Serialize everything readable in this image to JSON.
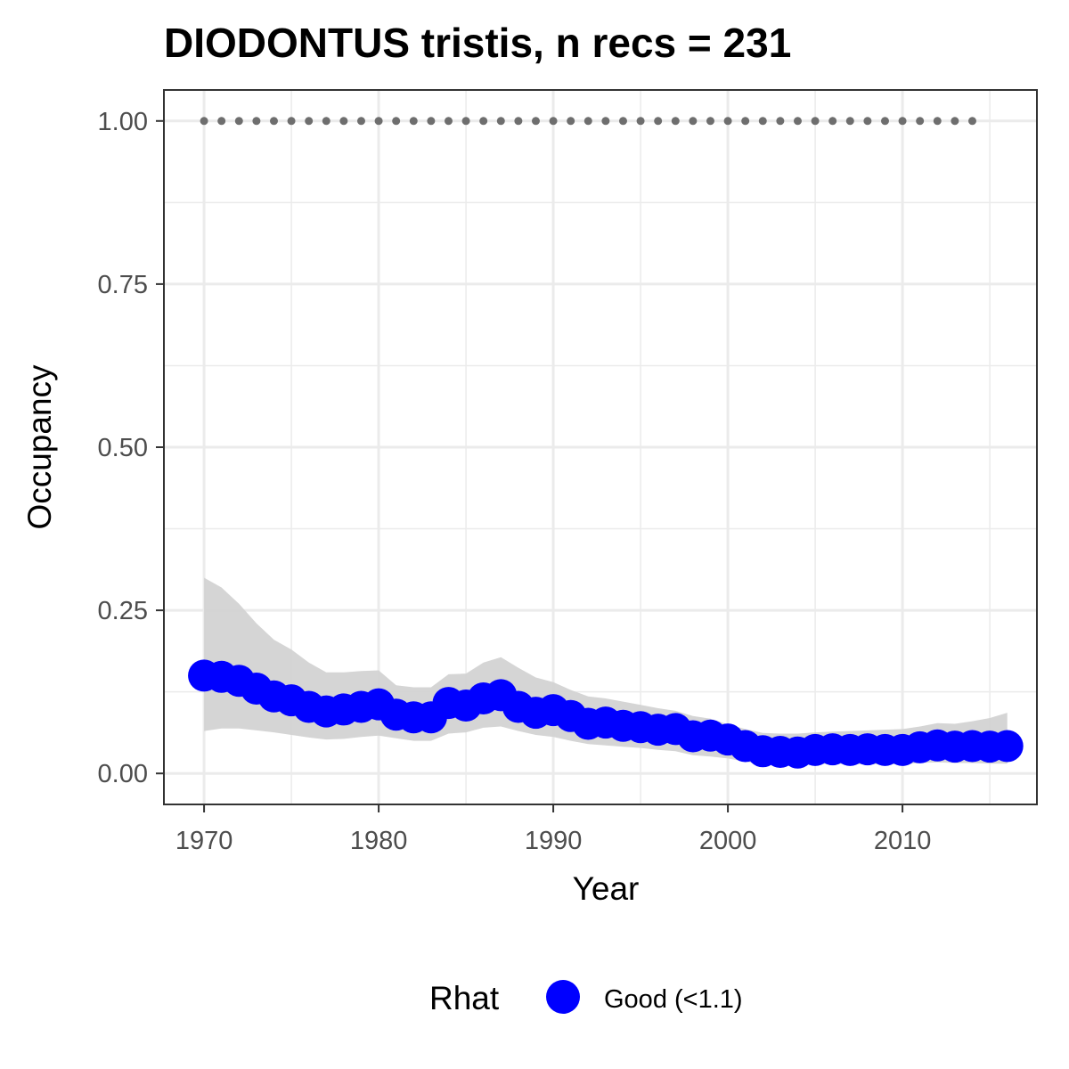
{
  "chart_data": {
    "type": "line",
    "title": "DIODONTUS tristis, n recs = 231",
    "xlabel": "Year",
    "ylabel": "Occupancy",
    "xlim": [
      1967.7,
      2017.7
    ],
    "ylim": [
      -0.0475,
      1.0475
    ],
    "x_ticks": [
      1970,
      1980,
      1990,
      2000,
      2010
    ],
    "x_tick_labels": [
      "1970",
      "1980",
      "1990",
      "2000",
      "2010"
    ],
    "y_ticks": [
      0,
      0.25,
      0.5,
      0.75,
      1
    ],
    "y_tick_labels": [
      "0.00",
      "0.25",
      "0.50",
      "0.75",
      "1.00"
    ],
    "grid": true,
    "legend": {
      "title": "Rhat",
      "position": "bottom",
      "entries": [
        {
          "label": "Good (<1.1)",
          "color": "#0000ff"
        }
      ]
    },
    "colors": {
      "series": "#0000ff",
      "ribbon": "#d3d3d3",
      "dotted": "#6e6e6e",
      "grid": "#ebebeb",
      "panel_border": "#333333"
    },
    "x": [
      1970,
      1971,
      1972,
      1973,
      1974,
      1975,
      1976,
      1977,
      1978,
      1979,
      1980,
      1981,
      1982,
      1983,
      1984,
      1985,
      1986,
      1987,
      1988,
      1989,
      1990,
      1991,
      1992,
      1993,
      1994,
      1995,
      1996,
      1997,
      1998,
      1999,
      2000,
      2001,
      2002,
      2003,
      2004,
      2005,
      2006,
      2007,
      2008,
      2009,
      2010,
      2011,
      2012,
      2013,
      2014,
      2015,
      2016
    ],
    "series": [
      {
        "values": [
          0.15,
          0.148,
          0.142,
          0.13,
          0.118,
          0.112,
          0.102,
          0.095,
          0.098,
          0.102,
          0.106,
          0.09,
          0.086,
          0.086,
          0.108,
          0.104,
          0.115,
          0.12,
          0.102,
          0.093,
          0.097,
          0.088,
          0.076,
          0.078,
          0.073,
          0.071,
          0.067,
          0.068,
          0.057,
          0.058,
          0.052,
          0.042,
          0.034,
          0.033,
          0.032,
          0.036,
          0.037,
          0.036,
          0.037,
          0.036,
          0.036,
          0.04,
          0.043,
          0.041,
          0.042,
          0.041,
          0.042
        ]
      }
    ],
    "ribbon": {
      "lower": [
        0.065,
        0.069,
        0.069,
        0.066,
        0.063,
        0.059,
        0.055,
        0.052,
        0.053,
        0.056,
        0.058,
        0.054,
        0.05,
        0.05,
        0.061,
        0.063,
        0.07,
        0.072,
        0.065,
        0.059,
        0.056,
        0.05,
        0.045,
        0.043,
        0.041,
        0.039,
        0.036,
        0.034,
        0.028,
        0.026,
        0.023,
        0.018,
        0.014,
        0.013,
        0.013,
        0.014,
        0.015,
        0.014,
        0.014,
        0.014,
        0.014,
        0.016,
        0.017,
        0.016,
        0.016,
        0.015,
        0.015
      ],
      "upper": [
        0.3,
        0.285,
        0.26,
        0.23,
        0.205,
        0.19,
        0.17,
        0.155,
        0.155,
        0.157,
        0.158,
        0.135,
        0.132,
        0.132,
        0.152,
        0.153,
        0.17,
        0.178,
        0.162,
        0.147,
        0.14,
        0.128,
        0.118,
        0.115,
        0.11,
        0.105,
        0.1,
        0.096,
        0.088,
        0.084,
        0.075,
        0.068,
        0.062,
        0.061,
        0.061,
        0.063,
        0.064,
        0.065,
        0.066,
        0.067,
        0.068,
        0.072,
        0.077,
        0.076,
        0.08,
        0.085,
        0.093
      ]
    },
    "dotted_series": {
      "x_start": 1970,
      "x_end": 2014,
      "value": 1.0
    }
  }
}
